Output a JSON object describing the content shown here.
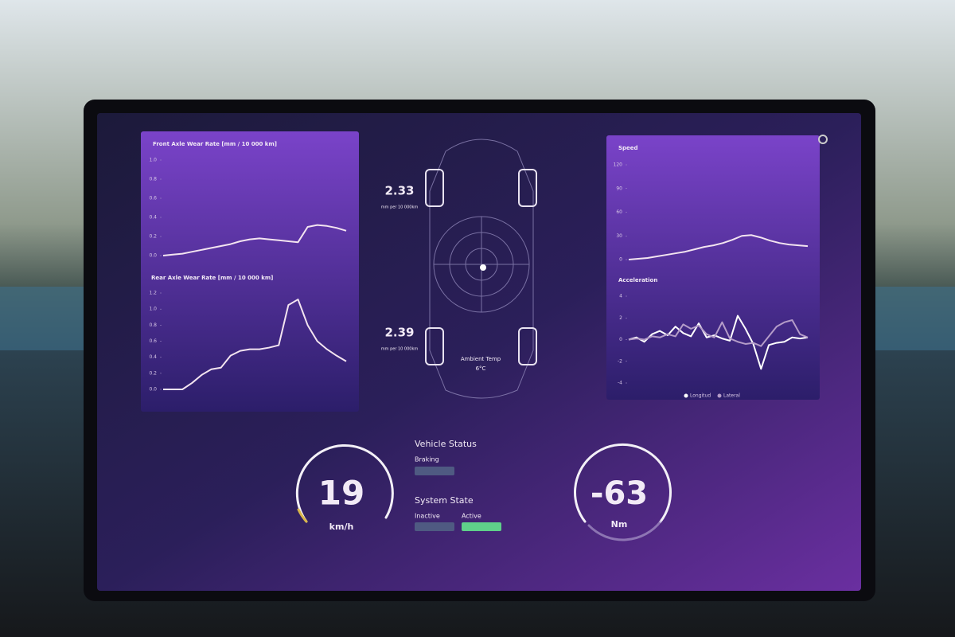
{
  "charts": [
    {
      "title": "Front Axle Wear Rate [mm / 10 000 km]",
      "ylim": [
        0,
        1.0
      ],
      "yticks": [
        {
          "value": 0,
          "label": "0.0"
        },
        {
          "value": 0.2,
          "label": "0.2"
        },
        {
          "value": 0.4,
          "label": "0.4"
        },
        {
          "value": 0.6,
          "label": "0.6"
        },
        {
          "value": 0.8,
          "label": "0.8"
        },
        {
          "value": 1.0,
          "label": "1.0"
        }
      ],
      "series": [
        {
          "color": "#f3e4f0",
          "values": [
            0,
            0.01,
            0.02,
            0.04,
            0.06,
            0.08,
            0.1,
            0.12,
            0.15,
            0.17,
            0.18,
            0.17,
            0.16,
            0.15,
            0.14,
            0.3,
            0.32,
            0.31,
            0.29,
            0.26
          ]
        }
      ]
    },
    {
      "title": "Rear Axle Wear Rate [mm / 10 000 km]",
      "ylim": [
        0,
        1.2
      ],
      "yticks": [
        {
          "value": 0,
          "label": "0.0"
        },
        {
          "value": 0.2,
          "label": "0.2"
        },
        {
          "value": 0.4,
          "label": "0.4"
        },
        {
          "value": 0.6,
          "label": "0.6"
        },
        {
          "value": 0.8,
          "label": "0.8"
        },
        {
          "value": 1.0,
          "label": "1.0"
        },
        {
          "value": 1.2,
          "label": "1.2"
        }
      ],
      "series": [
        {
          "color": "#f3e4f0",
          "values": [
            0,
            0,
            0,
            0.08,
            0.18,
            0.25,
            0.27,
            0.42,
            0.48,
            0.5,
            0.5,
            0.52,
            0.55,
            1.05,
            1.12,
            0.8,
            0.6,
            0.5,
            0.42,
            0.35
          ]
        }
      ]
    },
    {
      "title": "Speed",
      "ylim": [
        0,
        120
      ],
      "yticks": [
        0,
        30,
        60,
        90,
        120
      ],
      "series": [
        {
          "color": "#f3e4f0",
          "values": [
            0,
            1,
            2,
            4,
            6,
            8,
            10,
            13,
            16,
            18,
            21,
            25,
            30,
            31,
            28,
            24,
            21,
            19,
            18,
            17
          ]
        }
      ]
    },
    {
      "title": "Acceleration",
      "ylim": [
        -4,
        4
      ],
      "yticks": [
        -4,
        -2,
        0,
        2,
        4
      ],
      "series": [
        {
          "name": "Longitud",
          "color": "#ffffff",
          "values": [
            0,
            0.2,
            -0.2,
            0.5,
            0.8,
            0.4,
            1.2,
            0.6,
            0.3,
            1.5,
            0.2,
            0.4,
            0.1,
            -0.1,
            2.2,
            1.0,
            -0.4,
            -2.7,
            -0.5,
            -0.3,
            -0.2,
            0.2,
            0.1,
            0.2
          ]
        },
        {
          "name": "Lateral",
          "color": "#b49cc8",
          "values": [
            0,
            0.1,
            0,
            0.3,
            0.2,
            0.5,
            0.3,
            1.4,
            1.0,
            1.3,
            0.5,
            0.2,
            1.6,
            0.1,
            -0.2,
            -0.4,
            -0.3,
            -0.6,
            0.3,
            1.2,
            1.6,
            1.8,
            0.5,
            0.2
          ]
        }
      ]
    }
  ],
  "wheels": {
    "front": {
      "value": 2.33,
      "unit": "mm per 10 000km"
    },
    "rear": {
      "value": 2.39,
      "unit": "mm per 10 000km"
    },
    "ambient_label": "Ambient Temp",
    "ambient_value": "6°C"
  },
  "status": {
    "title": "Vehicle Status",
    "braking": "Braking",
    "system_title": "System State",
    "inactive": "Inactive",
    "active": "Active"
  },
  "gauges": [
    {
      "value": 19,
      "unit": "km/h"
    },
    {
      "value": -63,
      "unit": "Nm"
    }
  ]
}
